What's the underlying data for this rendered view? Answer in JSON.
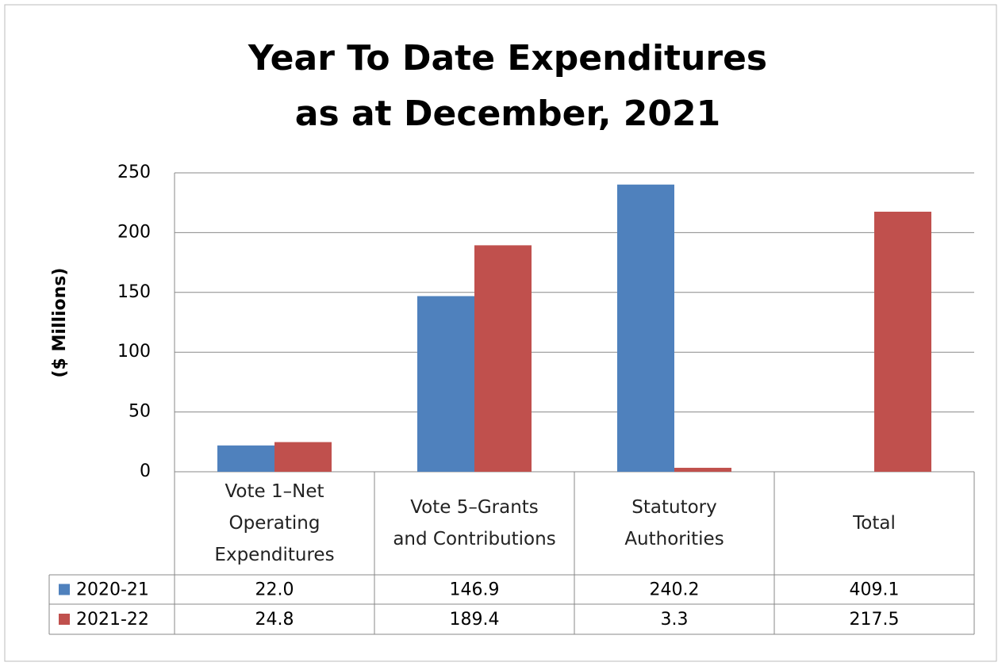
{
  "chart_data": {
    "type": "bar",
    "title": [
      "Year To Date Expenditures",
      "as at December, 2021"
    ],
    "y_label": "($ Millions)",
    "categories": [
      "Vote 1–Net Operating Expenditures",
      "Vote 5–Grants and Contributions",
      "Statutory Authorities",
      "Total"
    ],
    "series": [
      {
        "name": "2020-21",
        "color": "#4f81bd",
        "values": [
          22.0,
          146.9,
          240.2,
          409.1
        ],
        "value_labels": [
          "22.0",
          "146.9",
          "240.2",
          "409.1"
        ]
      },
      {
        "name": "2021-22",
        "color": "#c0504d",
        "values": [
          24.8,
          189.4,
          3.3,
          217.5
        ],
        "value_labels": [
          "24.8",
          "189.4",
          "3.3",
          "217.5"
        ]
      }
    ],
    "ylim": [
      0,
      250
    ],
    "yticks": [
      0,
      50,
      100,
      150,
      200,
      250
    ],
    "grid": true,
    "data_table": true
  }
}
